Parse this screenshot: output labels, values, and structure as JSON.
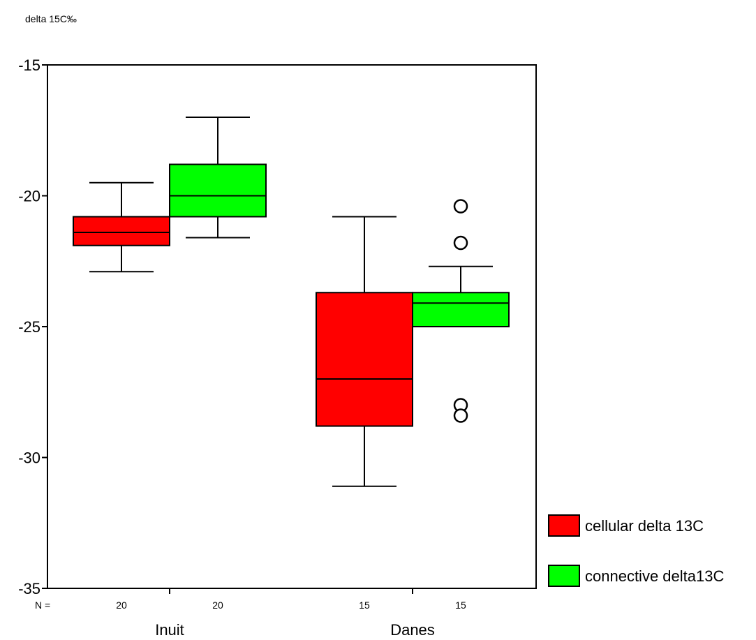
{
  "chart_data": {
    "type": "box",
    "ylabel": "delta 15C‰",
    "ylim": [
      -35,
      -15
    ],
    "yticks": [
      -15,
      -20,
      -25,
      -30,
      -35
    ],
    "grid": false,
    "legend_position": "bottom-right",
    "n_label": "N =",
    "categories": [
      "Inuit",
      "Danes"
    ],
    "series": [
      {
        "name": "cellular delta 13C",
        "color": "#ff0000",
        "boxes": [
          {
            "category": "Inuit",
            "n": "20",
            "whisker_low": -22.9,
            "q1": -21.9,
            "median": -21.4,
            "q3": -20.8,
            "whisker_high": -19.5,
            "outliers": []
          },
          {
            "category": "Danes",
            "n": "15",
            "whisker_low": -31.1,
            "q1": -28.8,
            "median": -27.0,
            "q3": -23.7,
            "whisker_high": -20.8,
            "outliers": []
          }
        ]
      },
      {
        "name": "connective delta13C",
        "color": "#00ff00",
        "boxes": [
          {
            "category": "Inuit",
            "n": "20",
            "whisker_low": -21.6,
            "q1": -20.8,
            "median": -20.0,
            "q3": -18.8,
            "whisker_high": -17.0,
            "outliers": []
          },
          {
            "category": "Danes",
            "n": "15",
            "whisker_low": -25.0,
            "q1": -25.0,
            "median": -24.1,
            "q3": -23.7,
            "whisker_high": -22.7,
            "outliers": [
              -20.4,
              -21.8,
              -28.0,
              -28.4
            ]
          }
        ]
      }
    ]
  }
}
